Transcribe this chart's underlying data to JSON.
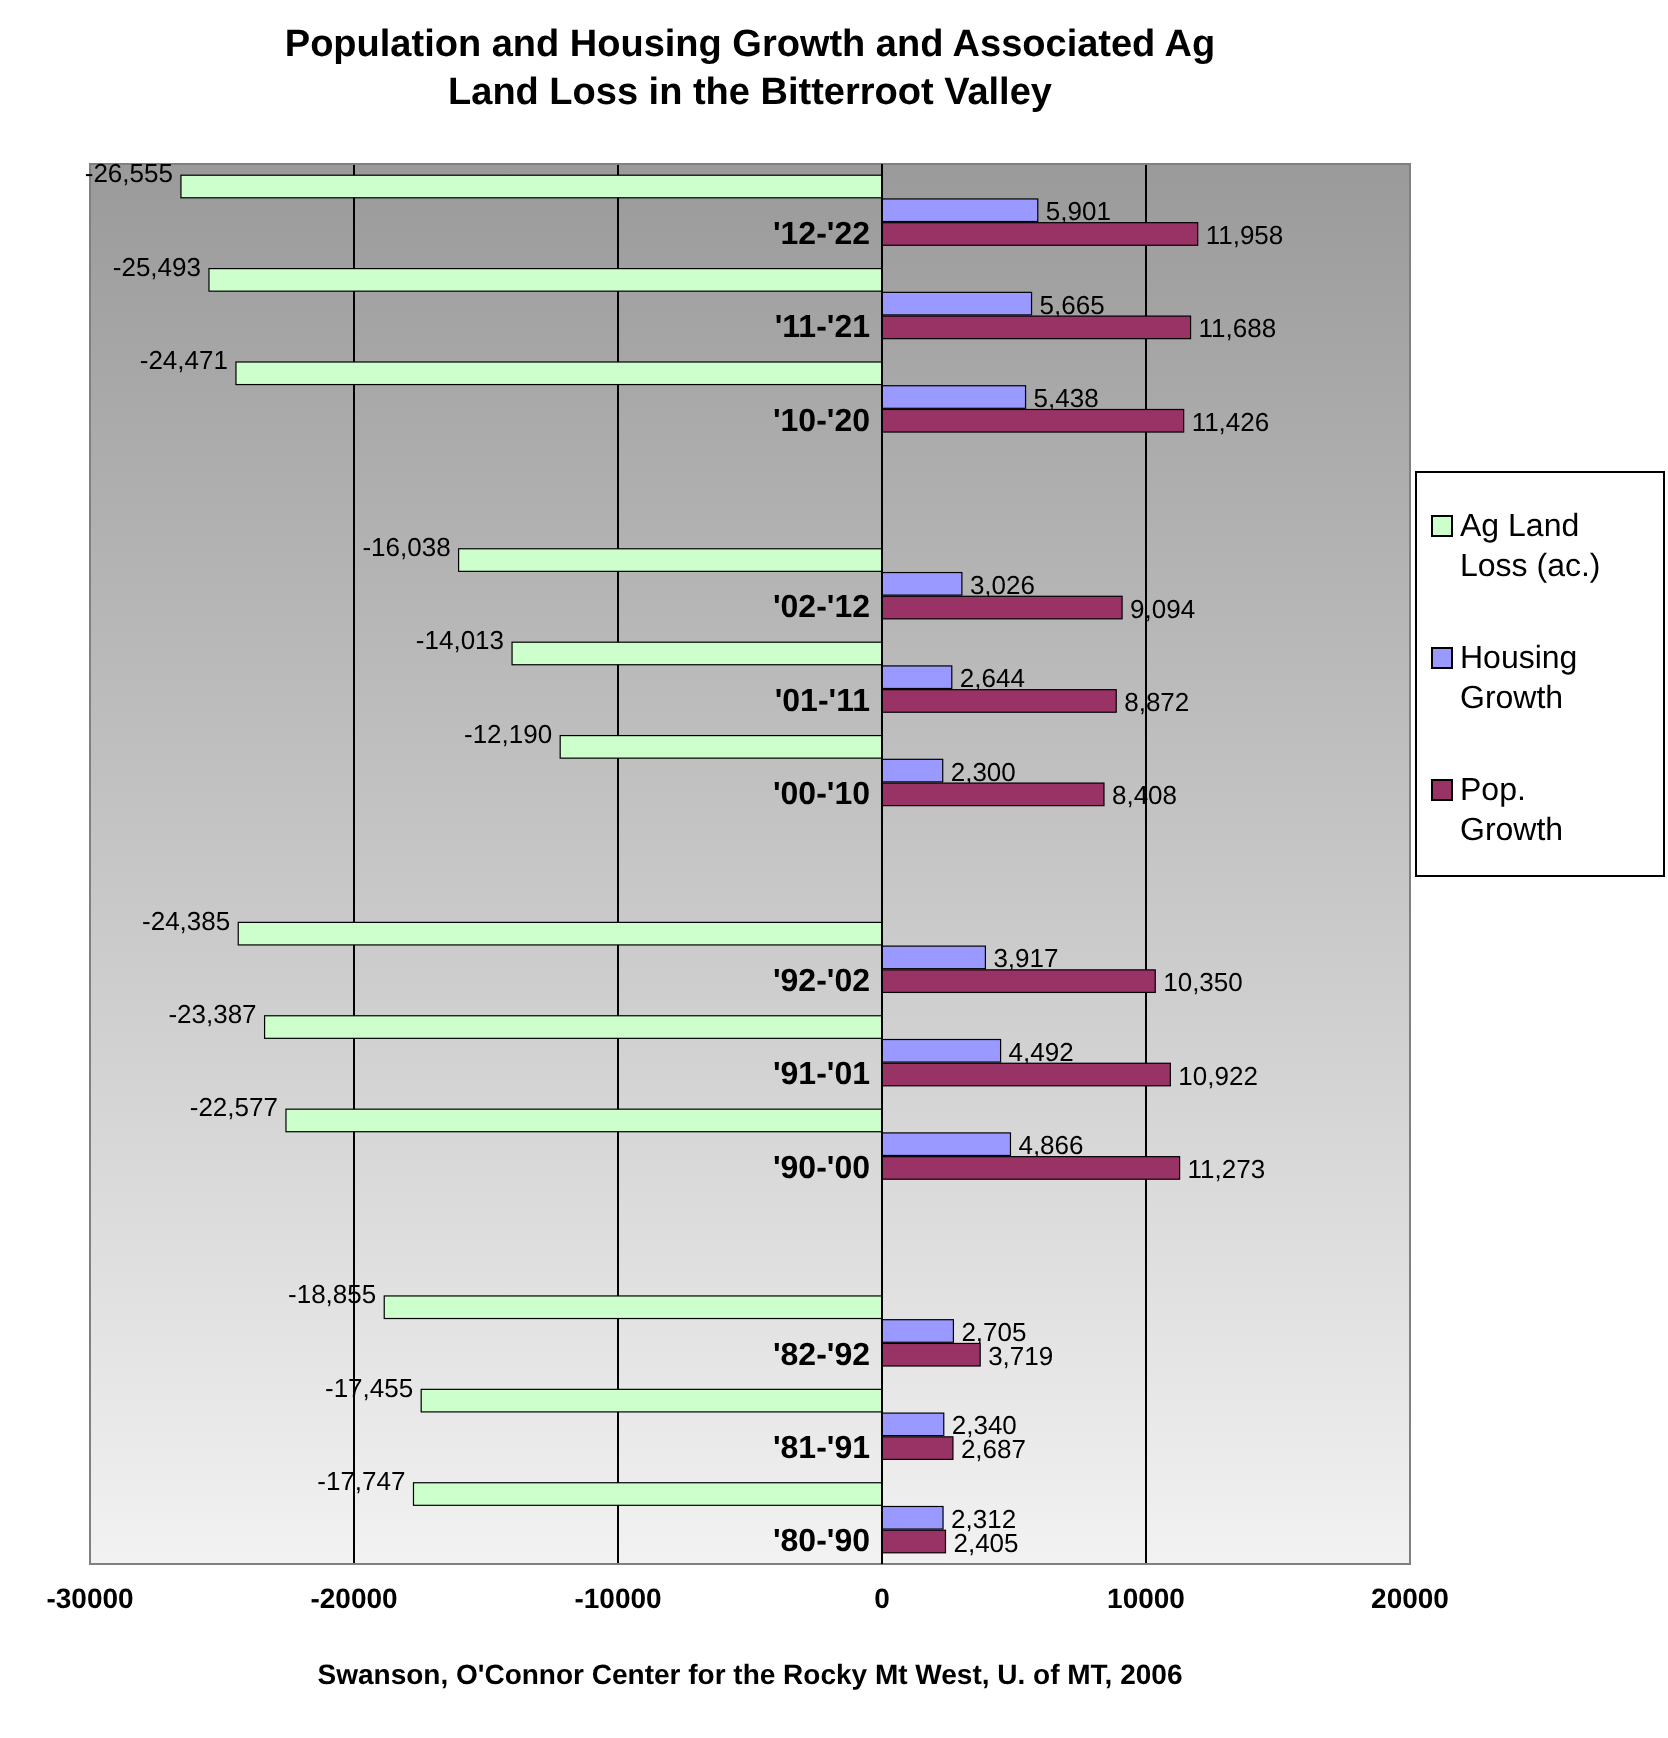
{
  "chart_data": {
    "type": "bar",
    "orientation": "horizontal",
    "title": "Population and Housing Growth and Associated Ag Land Loss in the Bitterroot Valley",
    "categories": [
      "'12-'22",
      "'11-'21",
      "'10-'20",
      null,
      "'02-'12",
      "'01-'11",
      "'00-'10",
      null,
      "'92-'02",
      "'91-'01",
      "'90-'00",
      null,
      "'82-'92",
      "'81-'91",
      "'80-'90"
    ],
    "series": [
      {
        "name": "Ag Land Loss (ac.)",
        "color": "#ccffcc",
        "values": [
          -26555,
          -25493,
          -24471,
          null,
          -16038,
          -14013,
          -12190,
          null,
          -24385,
          -23387,
          -22577,
          null,
          -18855,
          -17455,
          -17747
        ],
        "value_labels": [
          "-26,555",
          "-25,493",
          "-24,471",
          null,
          "-16,038",
          "-14,013",
          "-12,190",
          null,
          "-24,385",
          "-23,387",
          "-22,577",
          null,
          "-18,855",
          "-17,455",
          "-17,747"
        ]
      },
      {
        "name": "Housing Growth",
        "color": "#9999ff",
        "values": [
          5901,
          5665,
          5438,
          null,
          3026,
          2644,
          2300,
          null,
          3917,
          4492,
          4866,
          null,
          2705,
          2340,
          2312
        ],
        "value_labels": [
          "5,901",
          "5,665",
          "5,438",
          null,
          "3,026",
          "2,644",
          "2,300",
          null,
          "3,917",
          "4,492",
          "4,866",
          null,
          "2,705",
          "2,340",
          "2,312"
        ]
      },
      {
        "name": "Pop. Growth",
        "color": "#993366",
        "values": [
          11958,
          11688,
          11426,
          null,
          9094,
          8872,
          8408,
          null,
          10350,
          10922,
          11273,
          null,
          3719,
          2687,
          2405
        ],
        "value_labels": [
          "11,958",
          "11,688",
          "11,426",
          null,
          "9,094",
          "8,872",
          "8,408",
          null,
          "10,350",
          "10,922",
          "11,273",
          null,
          "3,719",
          "2,687",
          "2,405"
        ]
      }
    ],
    "xlim": [
      -30000,
      20000
    ],
    "xticks": [
      -30000,
      -20000,
      -10000,
      0,
      10000,
      20000
    ],
    "grid": "x",
    "legend": "right",
    "annotations": [
      "Swanson, O'Connor Center for the Rocky Mt West, U. of MT, 2006"
    ]
  }
}
